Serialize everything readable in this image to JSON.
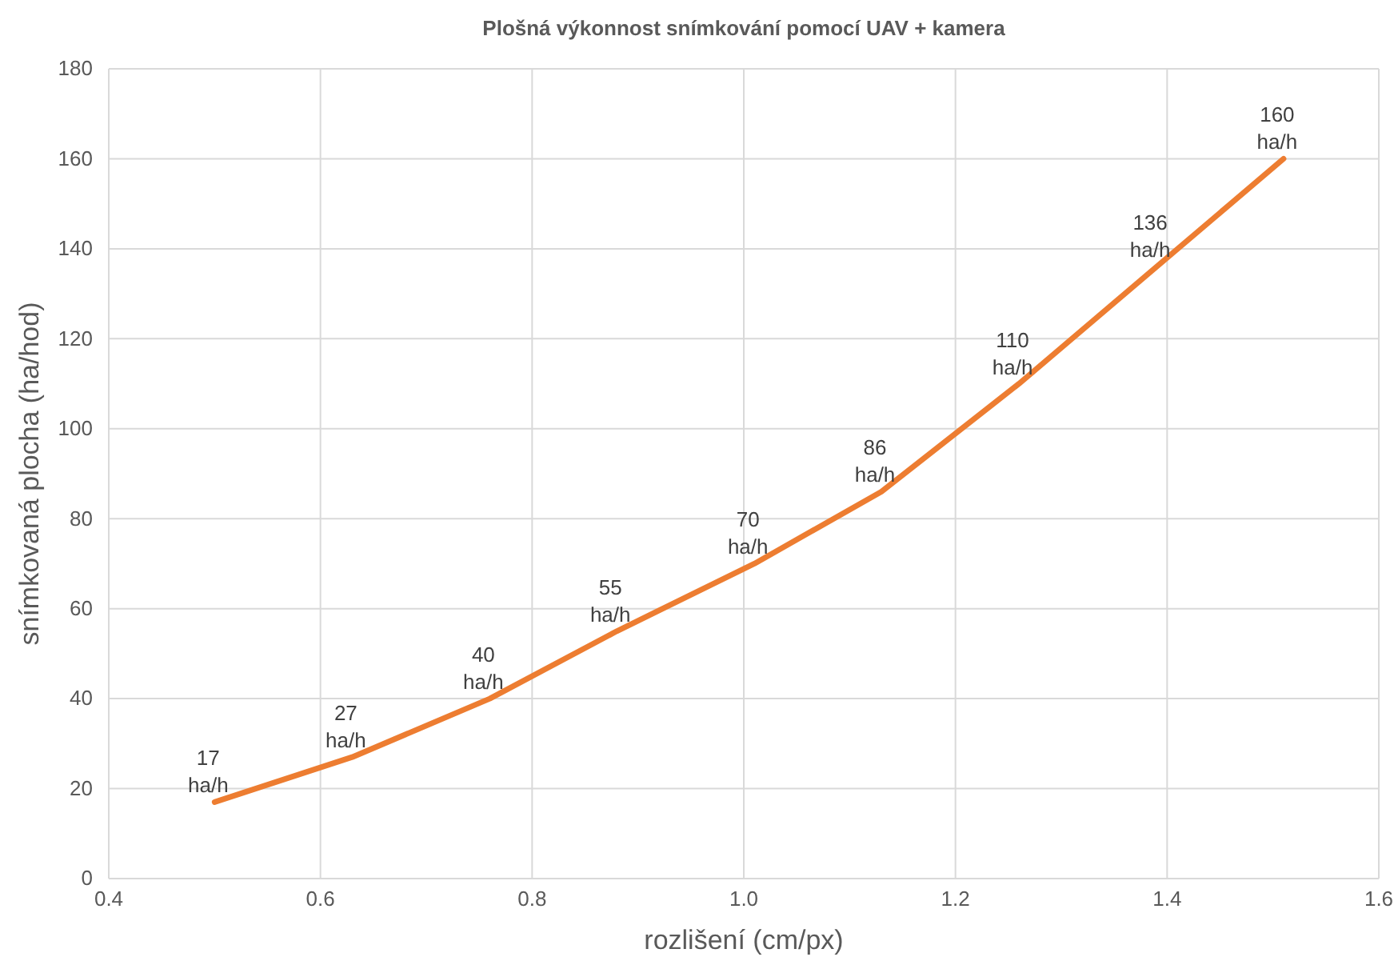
{
  "chart_data": {
    "type": "line",
    "title": "Plošná výkonnost snímkování pomocí UAV + kamera",
    "xlabel": "rozlišení (cm/px)",
    "ylabel": "snímkovaná plocha (ha/hod)",
    "x": [
      0.5,
      0.63,
      0.76,
      0.88,
      1.01,
      1.13,
      1.26,
      1.39,
      1.51
    ],
    "series": [
      {
        "color": "#ed7d31",
        "values": [
          17,
          27,
          40,
          55,
          70,
          86,
          110,
          136,
          160
        ],
        "value_labels": [
          "17 ha/h",
          "27 ha/h",
          "40 ha/h",
          "55 ha/h",
          "70 ha/h",
          "86 ha/h",
          "110 ha/h",
          "136 ha/h",
          "160 ha/h"
        ]
      }
    ],
    "xlim": [
      0.4,
      1.6
    ],
    "xticks": [
      0.4,
      0.6,
      0.8,
      {
        "value": 1,
        "label": "1.0"
      },
      1.2,
      1.4,
      1.6
    ],
    "ylim": [
      0,
      180
    ],
    "yticks": [
      0,
      20,
      40,
      60,
      80,
      100,
      120,
      140,
      160,
      180
    ],
    "grid": true,
    "marker": "none",
    "line_style": "solid"
  }
}
